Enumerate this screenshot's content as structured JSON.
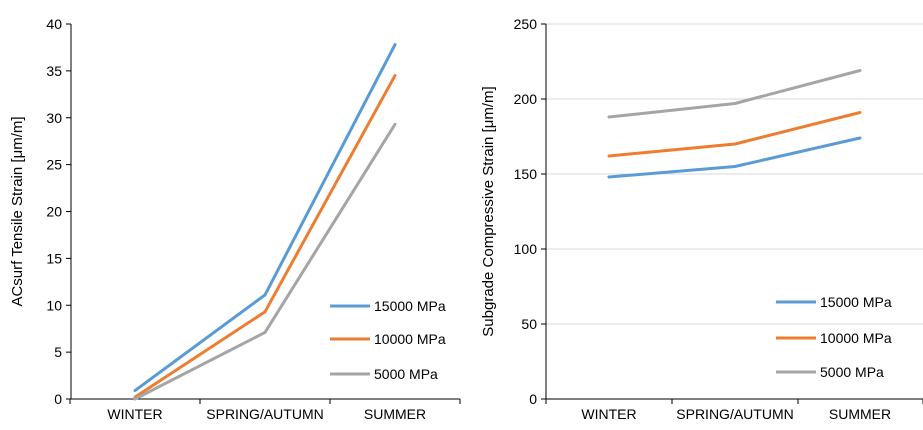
{
  "chart_data": [
    {
      "type": "line",
      "categories": [
        "WINTER",
        "SPRING/AUTUMN",
        "SUMMER"
      ],
      "ylabel": "ACsurf Tensile Strain [μm/m]",
      "xlabel": "",
      "ylim": [
        0,
        40
      ],
      "yticks": [
        0,
        5,
        10,
        15,
        20,
        25,
        30,
        35,
        40
      ],
      "grid": false,
      "legend_position": "bottom-right",
      "series": [
        {
          "name": "15000 MPa",
          "color": "#5B9BD5",
          "values": [
            0.9,
            11.1,
            37.8
          ]
        },
        {
          "name": "10000 MPa",
          "color": "#ED7D31",
          "values": [
            0.2,
            9.3,
            34.5
          ]
        },
        {
          "name": "5000 MPa",
          "color": "#A5A5A5",
          "values": [
            0.0,
            7.1,
            29.3
          ]
        }
      ]
    },
    {
      "type": "line",
      "categories": [
        "WINTER",
        "SPRING/AUTUMN",
        "SUMMER"
      ],
      "ylabel": "Subgrade Compressive Strain [μm/m]",
      "xlabel": "",
      "ylim": [
        0,
        250
      ],
      "yticks": [
        0,
        50,
        100,
        150,
        200,
        250
      ],
      "grid": true,
      "legend_position": "bottom-right",
      "series": [
        {
          "name": "15000 MPa",
          "color": "#5B9BD5",
          "values": [
            148,
            155,
            174
          ]
        },
        {
          "name": "10000 MPa",
          "color": "#ED7D31",
          "values": [
            162,
            170,
            191
          ]
        },
        {
          "name": "5000 MPa",
          "color": "#A5A5A5",
          "values": [
            188,
            197,
            219
          ]
        }
      ]
    }
  ]
}
